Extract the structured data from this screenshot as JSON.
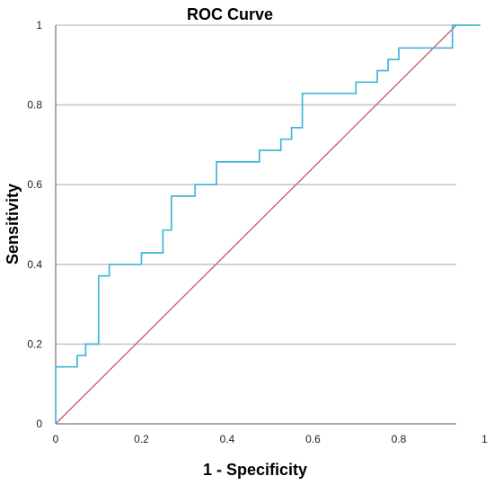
{
  "chart_data": {
    "type": "line",
    "title": "ROC Curve",
    "xlabel": "1 - Specificity",
    "ylabel": "Sensitivity",
    "xlim": [
      0,
      1
    ],
    "ylim": [
      0,
      1
    ],
    "x_ticks": [
      "0",
      "0.2",
      "0.4",
      "0.6",
      "0.8",
      "1"
    ],
    "y_ticks": [
      "0",
      "0.2",
      "0.4",
      "0.6",
      "0.8",
      "1"
    ],
    "grid": "horizontal",
    "legend": "none",
    "series": [
      {
        "color": "#41b6d9",
        "step": true,
        "x": [
          0,
          0,
          0.05,
          0.05,
          0.07,
          0.07,
          0.1,
          0.1,
          0.125,
          0.125,
          0.2,
          0.2,
          0.25,
          0.25,
          0.27,
          0.27,
          0.325,
          0.325,
          0.375,
          0.375,
          0.475,
          0.475,
          0.525,
          0.525,
          0.55,
          0.55,
          0.575,
          0.575,
          0.7,
          0.7,
          0.75,
          0.75,
          0.775,
          0.775,
          0.8,
          0.8,
          0.925,
          0.925,
          0.99
        ],
        "y": [
          0,
          0.143,
          0.143,
          0.171,
          0.171,
          0.2,
          0.2,
          0.371,
          0.371,
          0.4,
          0.4,
          0.429,
          0.429,
          0.486,
          0.486,
          0.571,
          0.571,
          0.6,
          0.6,
          0.657,
          0.657,
          0.686,
          0.686,
          0.714,
          0.714,
          0.743,
          0.743,
          0.829,
          0.829,
          0.857,
          0.857,
          0.886,
          0.886,
          0.914,
          0.914,
          0.943,
          0.943,
          1.0,
          1.0
        ]
      },
      {
        "color": "#c9566e",
        "x": [
          0,
          1
        ],
        "y": [
          0,
          1
        ]
      }
    ]
  }
}
